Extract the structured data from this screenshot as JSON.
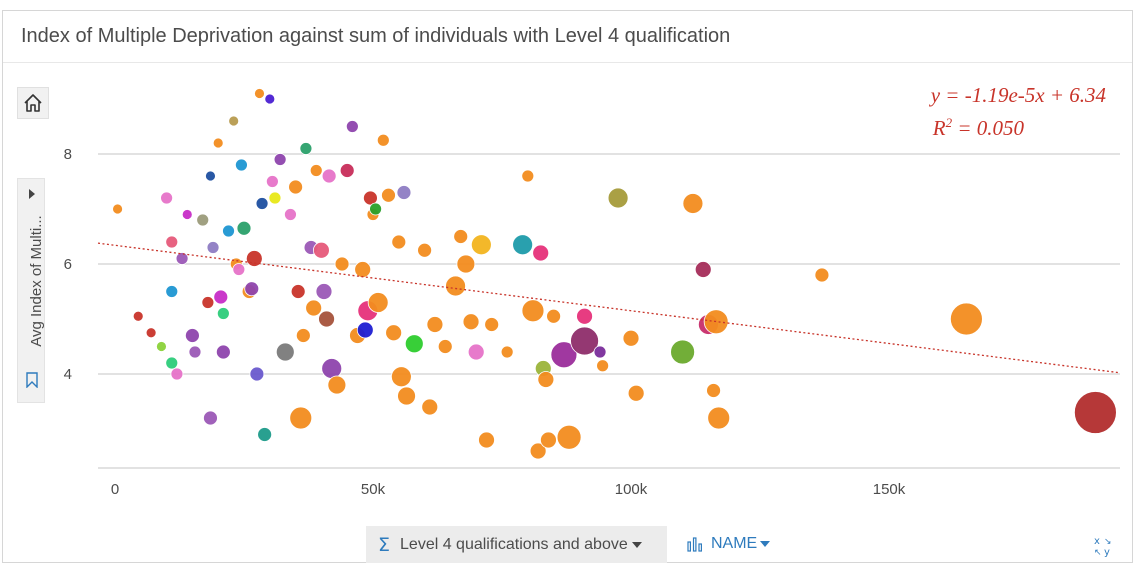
{
  "title": "Index of Multiple Deprivation against sum of individuals with Level 4 qualification",
  "y_field": "Avg Index of Multi...",
  "x_field": "Level 4 qualifications and above",
  "color_field": "NAME",
  "regression": {
    "equation": "y = -1.19e-5x + 6.34",
    "r2_prefix": "R",
    "r2_exp": "2",
    "r2_value": " = 0.050"
  },
  "chart_data": {
    "type": "scatter",
    "title": "Index of Multiple Deprivation against sum of individuals with Level 4 qualification",
    "xlabel": "Level 4 qualifications and above",
    "ylabel": "Avg Index of Multi...",
    "xlim": [
      -3000,
      195000
    ],
    "ylim": [
      2.4,
      9.3
    ],
    "x_ticks": [
      0,
      50000,
      100000,
      150000
    ],
    "x_tick_labels": [
      "0",
      "50k",
      "100k",
      "150k"
    ],
    "y_ticks": [
      4,
      6,
      8
    ],
    "y_tick_labels": [
      "4",
      "6",
      "8"
    ],
    "grid": true,
    "trendline": {
      "slope": -1.19e-05,
      "intercept": 6.34
    },
    "points": [
      {
        "x": 500,
        "y": 7.0,
        "s": 5,
        "c": "#f28c1f"
      },
      {
        "x": 4500,
        "y": 5.05,
        "s": 5,
        "c": "#c8342a"
      },
      {
        "x": 7000,
        "y": 4.75,
        "s": 5,
        "c": "#c8342a"
      },
      {
        "x": 9000,
        "y": 4.5,
        "s": 5,
        "c": "#8bd23a"
      },
      {
        "x": 10000,
        "y": 7.2,
        "s": 6,
        "c": "#e673c8"
      },
      {
        "x": 11000,
        "y": 6.4,
        "s": 6,
        "c": "#e65a7a"
      },
      {
        "x": 11000,
        "y": 5.5,
        "s": 6,
        "c": "#1e96d2"
      },
      {
        "x": 11000,
        "y": 4.2,
        "s": 6,
        "c": "#2dcc7a"
      },
      {
        "x": 12000,
        "y": 4.0,
        "s": 6,
        "c": "#e673c8"
      },
      {
        "x": 13000,
        "y": 6.1,
        "s": 6,
        "c": "#9b59b6"
      },
      {
        "x": 14000,
        "y": 6.9,
        "s": 5,
        "c": "#c72dc7"
      },
      {
        "x": 15000,
        "y": 4.7,
        "s": 7,
        "c": "#8e44ad"
      },
      {
        "x": 15500,
        "y": 4.4,
        "s": 6,
        "c": "#9b59b6"
      },
      {
        "x": 17000,
        "y": 6.8,
        "s": 6,
        "c": "#9b9b7a"
      },
      {
        "x": 18000,
        "y": 5.3,
        "s": 6,
        "c": "#c8342a"
      },
      {
        "x": 18500,
        "y": 3.2,
        "s": 7,
        "c": "#9b59b6"
      },
      {
        "x": 18500,
        "y": 7.6,
        "s": 5,
        "c": "#1e4fa0"
      },
      {
        "x": 19000,
        "y": 6.3,
        "s": 6,
        "c": "#8e7cc3"
      },
      {
        "x": 20000,
        "y": 8.2,
        "s": 5,
        "c": "#f28c1f"
      },
      {
        "x": 20500,
        "y": 5.4,
        "s": 7,
        "c": "#c72dc7"
      },
      {
        "x": 21000,
        "y": 4.4,
        "s": 7,
        "c": "#8e44ad"
      },
      {
        "x": 21000,
        "y": 5.1,
        "s": 6,
        "c": "#2dcc7a"
      },
      {
        "x": 22000,
        "y": 6.6,
        "s": 6,
        "c": "#1e96d2"
      },
      {
        "x": 23000,
        "y": 8.6,
        "s": 5,
        "c": "#b79b4f"
      },
      {
        "x": 23500,
        "y": 6.0,
        "s": 6,
        "c": "#f28c1f"
      },
      {
        "x": 24000,
        "y": 5.9,
        "s": 6,
        "c": "#e673c8"
      },
      {
        "x": 24500,
        "y": 7.8,
        "s": 6,
        "c": "#1e96d2"
      },
      {
        "x": 25000,
        "y": 6.65,
        "s": 7,
        "c": "#2aa06a"
      },
      {
        "x": 26000,
        "y": 5.5,
        "s": 7,
        "c": "#f28c1f"
      },
      {
        "x": 26500,
        "y": 5.55,
        "s": 7,
        "c": "#8e44ad"
      },
      {
        "x": 27000,
        "y": 6.1,
        "s": 8,
        "c": "#c8342a"
      },
      {
        "x": 27500,
        "y": 4.0,
        "s": 7,
        "c": "#6a5acd"
      },
      {
        "x": 28000,
        "y": 9.1,
        "s": 5,
        "c": "#f28c1f"
      },
      {
        "x": 28500,
        "y": 7.1,
        "s": 6,
        "c": "#1e4fa0"
      },
      {
        "x": 29000,
        "y": 2.9,
        "s": 7,
        "c": "#1e9b8a"
      },
      {
        "x": 30000,
        "y": 9.0,
        "s": 5,
        "c": "#4a1fd2"
      },
      {
        "x": 30500,
        "y": 7.5,
        "s": 6,
        "c": "#e673c8"
      },
      {
        "x": 31000,
        "y": 7.2,
        "s": 6,
        "c": "#e8e817"
      },
      {
        "x": 32000,
        "y": 7.9,
        "s": 6,
        "c": "#8e44ad"
      },
      {
        "x": 33000,
        "y": 4.4,
        "s": 9,
        "c": "#7a7a7a"
      },
      {
        "x": 34000,
        "y": 6.9,
        "s": 6,
        "c": "#e673c8"
      },
      {
        "x": 35000,
        "y": 7.4,
        "s": 7,
        "c": "#f28c1f"
      },
      {
        "x": 35500,
        "y": 5.5,
        "s": 7,
        "c": "#c8342a"
      },
      {
        "x": 36000,
        "y": 3.2,
        "s": 11,
        "c": "#f28c1f"
      },
      {
        "x": 36500,
        "y": 4.7,
        "s": 7,
        "c": "#f28c1f"
      },
      {
        "x": 37000,
        "y": 8.1,
        "s": 6,
        "c": "#2aa06a"
      },
      {
        "x": 38000,
        "y": 6.3,
        "s": 7,
        "c": "#9b59b6"
      },
      {
        "x": 38500,
        "y": 5.2,
        "s": 8,
        "c": "#f28c1f"
      },
      {
        "x": 39000,
        "y": 7.7,
        "s": 6,
        "c": "#f28c1f"
      },
      {
        "x": 40000,
        "y": 6.25,
        "s": 8,
        "c": "#e65a7a"
      },
      {
        "x": 40500,
        "y": 5.5,
        "s": 8,
        "c": "#9b59b6"
      },
      {
        "x": 41000,
        "y": 5.0,
        "s": 8,
        "c": "#a5523b"
      },
      {
        "x": 41500,
        "y": 7.6,
        "s": 7,
        "c": "#e673c8"
      },
      {
        "x": 42000,
        "y": 4.1,
        "s": 10,
        "c": "#8e44ad"
      },
      {
        "x": 43000,
        "y": 3.8,
        "s": 9,
        "c": "#f28c1f"
      },
      {
        "x": 44000,
        "y": 6.0,
        "s": 7,
        "c": "#f28c1f"
      },
      {
        "x": 45000,
        "y": 7.7,
        "s": 7,
        "c": "#c72d5a"
      },
      {
        "x": 46000,
        "y": 8.5,
        "s": 6,
        "c": "#8e44ad"
      },
      {
        "x": 47000,
        "y": 4.7,
        "s": 8,
        "c": "#f28c1f"
      },
      {
        "x": 48000,
        "y": 5.9,
        "s": 8,
        "c": "#f28c1f"
      },
      {
        "x": 48500,
        "y": 4.8,
        "s": 8,
        "c": "#1e1ed2"
      },
      {
        "x": 49000,
        "y": 5.15,
        "s": 10,
        "c": "#e6327a"
      },
      {
        "x": 49500,
        "y": 7.2,
        "s": 7,
        "c": "#c8342a"
      },
      {
        "x": 50000,
        "y": 6.9,
        "s": 6,
        "c": "#f28c1f"
      },
      {
        "x": 50500,
        "y": 7.0,
        "s": 6,
        "c": "#2aa02a"
      },
      {
        "x": 51000,
        "y": 5.3,
        "s": 10,
        "c": "#f28c1f"
      },
      {
        "x": 52000,
        "y": 8.25,
        "s": 6,
        "c": "#f28c1f"
      },
      {
        "x": 53000,
        "y": 7.25,
        "s": 7,
        "c": "#f28c1f"
      },
      {
        "x": 54000,
        "y": 4.75,
        "s": 8,
        "c": "#f28c1f"
      },
      {
        "x": 55000,
        "y": 6.4,
        "s": 7,
        "c": "#f28c1f"
      },
      {
        "x": 55500,
        "y": 3.95,
        "s": 10,
        "c": "#f28c1f"
      },
      {
        "x": 56000,
        "y": 7.3,
        "s": 7,
        "c": "#8e7cc3"
      },
      {
        "x": 56500,
        "y": 3.6,
        "s": 9,
        "c": "#f28c1f"
      },
      {
        "x": 58000,
        "y": 4.55,
        "s": 9,
        "c": "#2dcc2d"
      },
      {
        "x": 60000,
        "y": 6.25,
        "s": 7,
        "c": "#f28c1f"
      },
      {
        "x": 61000,
        "y": 3.4,
        "s": 8,
        "c": "#f28c1f"
      },
      {
        "x": 62000,
        "y": 4.9,
        "s": 8,
        "c": "#f28c1f"
      },
      {
        "x": 64000,
        "y": 4.5,
        "s": 7,
        "c": "#f28c1f"
      },
      {
        "x": 66000,
        "y": 5.6,
        "s": 10,
        "c": "#f28c1f"
      },
      {
        "x": 67000,
        "y": 6.5,
        "s": 7,
        "c": "#f28c1f"
      },
      {
        "x": 68000,
        "y": 6.0,
        "s": 9,
        "c": "#f28c1f"
      },
      {
        "x": 69000,
        "y": 4.95,
        "s": 8,
        "c": "#f28c1f"
      },
      {
        "x": 70000,
        "y": 4.4,
        "s": 8,
        "c": "#e673c8"
      },
      {
        "x": 71000,
        "y": 6.35,
        "s": 10,
        "c": "#f2b41f"
      },
      {
        "x": 72000,
        "y": 2.8,
        "s": 8,
        "c": "#f28c1f"
      },
      {
        "x": 73000,
        "y": 4.9,
        "s": 7,
        "c": "#f28c1f"
      },
      {
        "x": 76000,
        "y": 4.4,
        "s": 6,
        "c": "#f28c1f"
      },
      {
        "x": 79000,
        "y": 6.35,
        "s": 10,
        "c": "#1e9baa"
      },
      {
        "x": 80000,
        "y": 7.6,
        "s": 6,
        "c": "#f28c1f"
      },
      {
        "x": 81000,
        "y": 5.15,
        "s": 11,
        "c": "#f28c1f"
      },
      {
        "x": 82000,
        "y": 2.6,
        "s": 8,
        "c": "#f28c1f"
      },
      {
        "x": 82500,
        "y": 6.2,
        "s": 8,
        "c": "#e6327a"
      },
      {
        "x": 83000,
        "y": 4.1,
        "s": 8,
        "c": "#9bb43a"
      },
      {
        "x": 83500,
        "y": 3.9,
        "s": 8,
        "c": "#f28c1f"
      },
      {
        "x": 84000,
        "y": 2.8,
        "s": 8,
        "c": "#f28c1f"
      },
      {
        "x": 85000,
        "y": 5.05,
        "s": 7,
        "c": "#f28c1f"
      },
      {
        "x": 87000,
        "y": 4.35,
        "s": 13,
        "c": "#9b2d9b"
      },
      {
        "x": 88000,
        "y": 2.85,
        "s": 12,
        "c": "#f28c1f"
      },
      {
        "x": 91000,
        "y": 5.05,
        "s": 8,
        "c": "#e6327a"
      },
      {
        "x": 91000,
        "y": 4.6,
        "s": 14,
        "c": "#8e2d6a"
      },
      {
        "x": 94000,
        "y": 4.4,
        "s": 6,
        "c": "#7a2d9b"
      },
      {
        "x": 94500,
        "y": 4.15,
        "s": 6,
        "c": "#f28c1f"
      },
      {
        "x": 97500,
        "y": 7.2,
        "s": 10,
        "c": "#a59b3a"
      },
      {
        "x": 100000,
        "y": 4.65,
        "s": 8,
        "c": "#f28c1f"
      },
      {
        "x": 101000,
        "y": 3.65,
        "s": 8,
        "c": "#f28c1f"
      },
      {
        "x": 110000,
        "y": 4.4,
        "s": 12,
        "c": "#6aaa2d"
      },
      {
        "x": 112000,
        "y": 7.1,
        "s": 10,
        "c": "#f28c1f"
      },
      {
        "x": 114000,
        "y": 5.9,
        "s": 8,
        "c": "#a52d5a"
      },
      {
        "x": 115000,
        "y": 4.9,
        "s": 10,
        "c": "#c72d6a"
      },
      {
        "x": 116000,
        "y": 3.7,
        "s": 7,
        "c": "#f28c1f"
      },
      {
        "x": 116500,
        "y": 4.95,
        "s": 12,
        "c": "#f28c1f"
      },
      {
        "x": 117000,
        "y": 3.2,
        "s": 11,
        "c": "#f28c1f"
      },
      {
        "x": 137000,
        "y": 5.8,
        "s": 7,
        "c": "#f28c1f"
      },
      {
        "x": 165000,
        "y": 5.0,
        "s": 16,
        "c": "#f28c1f"
      },
      {
        "x": 190000,
        "y": 3.3,
        "s": 21,
        "c": "#b22d2d"
      }
    ]
  }
}
